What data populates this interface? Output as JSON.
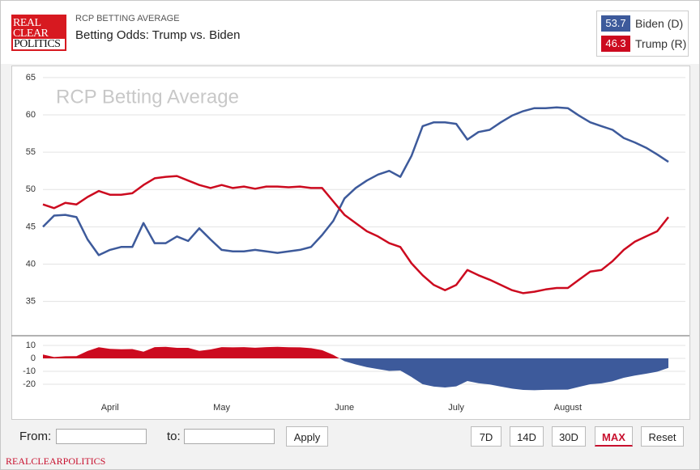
{
  "header": {
    "logo": [
      "REAL",
      "CLEAR",
      "POLITICS"
    ],
    "kicker": "RCP BETTING AVERAGE",
    "title": "Betting Odds: Trump vs. Biden"
  },
  "chart_data": [
    {
      "type": "line",
      "watermark": "RCP Betting Average",
      "categories": [
        null,
        null,
        null,
        null,
        null,
        null,
        "April",
        null,
        null,
        null,
        null,
        null,
        null,
        null,
        null,
        null,
        "May",
        null,
        null,
        null,
        null,
        null,
        null,
        null,
        null,
        null,
        null,
        "June",
        null,
        null,
        null,
        null,
        null,
        null,
        null,
        null,
        null,
        "July",
        null,
        null,
        null,
        null,
        null,
        null,
        null,
        null,
        null,
        "August",
        null,
        null,
        null,
        null,
        null,
        null,
        null,
        null,
        null
      ],
      "series": [
        {
          "name": "Biden (D)",
          "color": "#3d5a9b",
          "values": [
            45.0,
            46.5,
            46.6,
            46.3,
            43.3,
            41.2,
            41.9,
            42.3,
            42.3,
            45.5,
            42.8,
            42.8,
            43.7,
            43.1,
            44.8,
            43.3,
            41.9,
            41.7,
            41.7,
            41.9,
            41.7,
            41.5,
            41.7,
            41.9,
            42.3,
            43.9,
            45.8,
            48.8,
            50.2,
            51.2,
            52.0,
            52.5,
            51.7,
            54.5,
            58.5,
            59.0,
            59.0,
            58.8,
            56.7,
            57.7,
            58.0,
            59.0,
            59.9,
            60.5,
            60.9,
            60.9,
            61.0,
            60.9,
            59.9,
            59.0,
            58.5,
            58.0,
            56.9,
            56.3,
            55.6,
            54.7,
            53.7
          ]
        },
        {
          "name": "Trump (R)",
          "color": "#cc0a1f",
          "values": [
            48.0,
            47.5,
            48.2,
            48.0,
            49.0,
            49.8,
            49.3,
            49.3,
            49.5,
            50.6,
            51.5,
            51.7,
            51.8,
            51.2,
            50.6,
            50.2,
            50.6,
            50.2,
            50.4,
            50.1,
            50.4,
            50.4,
            50.3,
            50.4,
            50.2,
            50.2,
            48.4,
            46.6,
            45.5,
            44.4,
            43.7,
            42.8,
            42.3,
            40.1,
            38.5,
            37.2,
            36.5,
            37.2,
            39.2,
            38.5,
            37.9,
            37.2,
            36.5,
            36.1,
            36.3,
            36.6,
            36.8,
            36.8,
            37.9,
            39.0,
            39.2,
            40.4,
            41.9,
            43.0,
            43.7,
            44.4,
            46.3
          ]
        }
      ],
      "ylim": [
        30.4,
        66.4
      ],
      "yticks": [
        35,
        40,
        45,
        50,
        55,
        60,
        65
      ],
      "grid": true
    },
    {
      "type": "area",
      "values": [
        3.0,
        1.0,
        1.6,
        1.7,
        5.7,
        8.6,
        7.4,
        7.0,
        7.2,
        5.1,
        8.7,
        8.9,
        8.1,
        8.1,
        5.8,
        6.9,
        8.7,
        8.5,
        8.7,
        8.2,
        8.7,
        8.9,
        8.6,
        8.5,
        7.9,
        6.3,
        2.6,
        -2.2,
        -4.7,
        -6.8,
        -8.3,
        -9.7,
        -9.4,
        -14.4,
        -20.0,
        -21.8,
        -22.5,
        -21.6,
        -17.5,
        -19.2,
        -20.1,
        -21.8,
        -23.4,
        -24.4,
        -24.6,
        -24.3,
        -24.2,
        -24.1,
        -22.0,
        -20.0,
        -19.3,
        -17.6,
        -15.0,
        -13.3,
        -11.9,
        -10.3,
        -7.4
      ],
      "color_above": "#cc0a1f",
      "color_below": "#3d5a9b",
      "ylim": [
        -30,
        17.5
      ],
      "yticks": [
        10,
        0,
        -10,
        -20
      ],
      "grid": true
    }
  ],
  "controls": {
    "from": "From:",
    "to": "to:",
    "apply": "Apply",
    "ranges": [
      "7D",
      "14D",
      "30D",
      "MAX",
      "Reset"
    ],
    "active": "MAX"
  },
  "footer": "REALCLEARPOLITICS"
}
